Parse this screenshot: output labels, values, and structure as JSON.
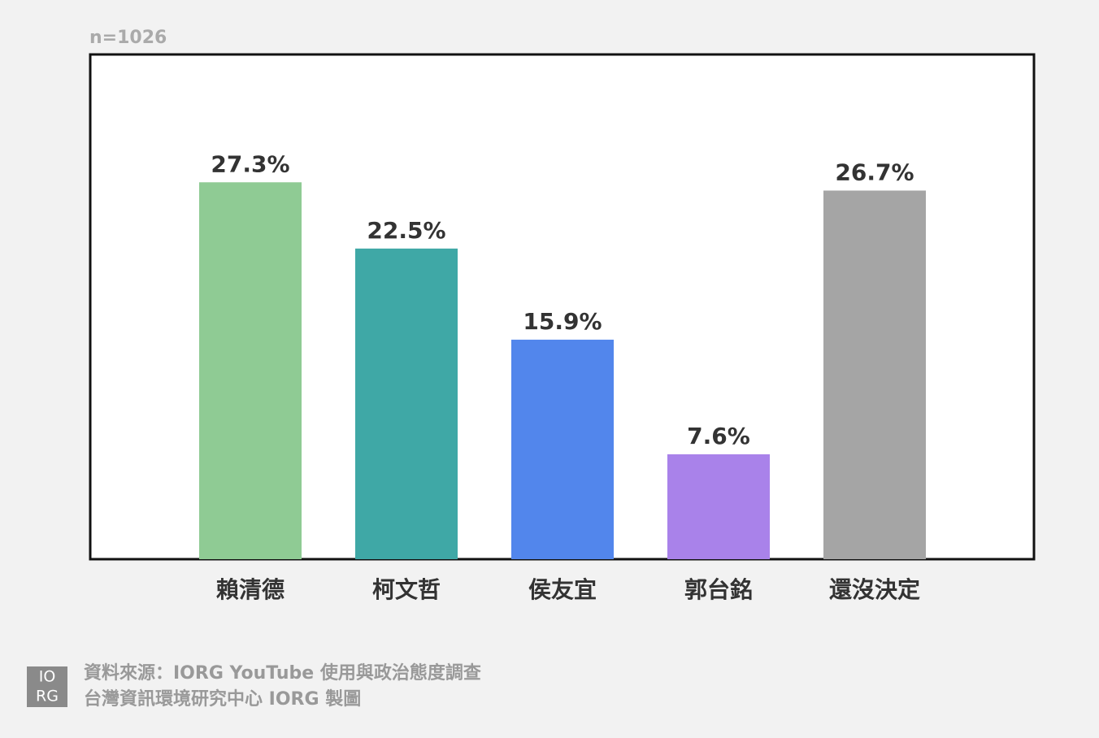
{
  "chart_data": {
    "type": "bar",
    "subtitle": "n=1026",
    "categories": [
      "賴清德",
      "柯文哲",
      "侯友宜",
      "郭台銘",
      "還沒決定"
    ],
    "values": [
      27.3,
      22.5,
      15.9,
      7.6,
      26.7
    ],
    "value_labels": [
      "27.3%",
      "22.5%",
      "15.9%",
      "7.6%",
      "26.7%"
    ],
    "colors": [
      "#8fcb94",
      "#3fa8a6",
      "#5286ec",
      "#a982ea",
      "#a5a5a5"
    ],
    "ylim": [
      0,
      36.5
    ]
  },
  "footer": {
    "logo": [
      "IO",
      "RG"
    ],
    "source": [
      "資料來源：IORG YouTube 使用與政治態度調查",
      "台灣資訊環境研究中心 IORG 製圖"
    ]
  }
}
